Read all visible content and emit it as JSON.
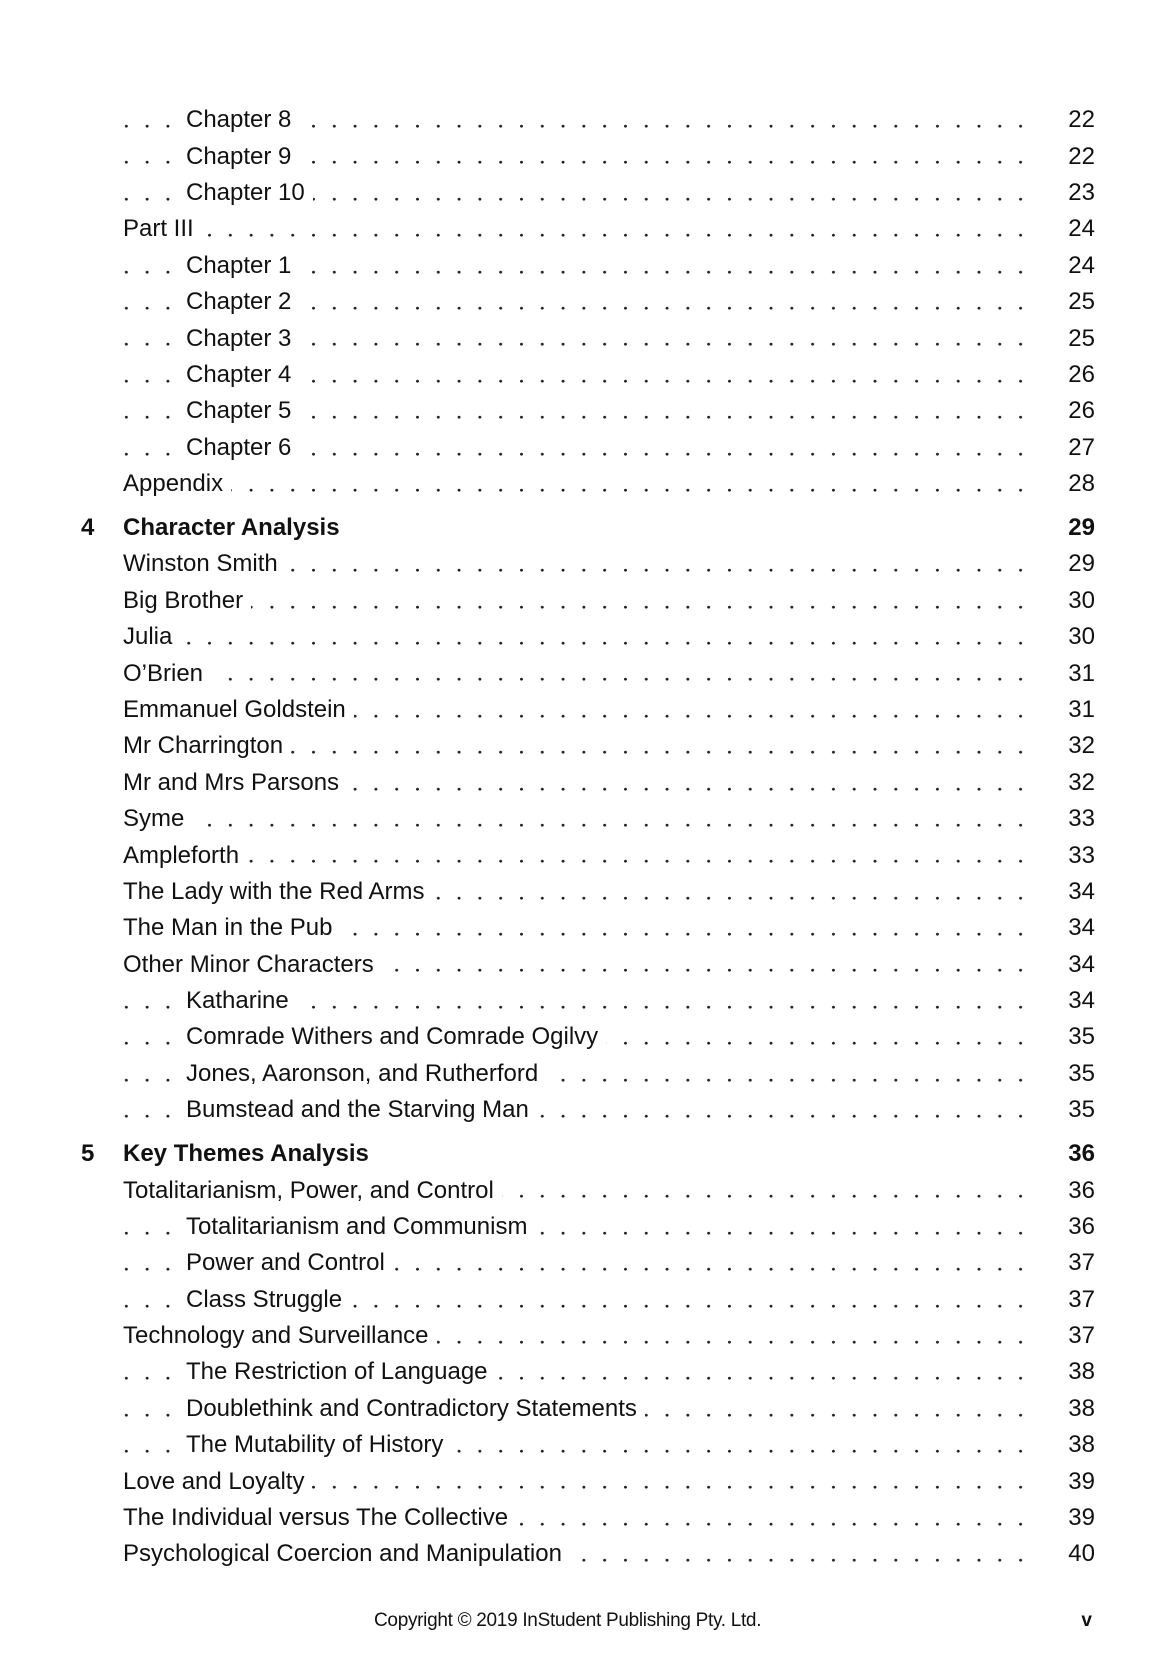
{
  "entries": [
    {
      "level": 2,
      "label": "Chapter 8",
      "page": "22"
    },
    {
      "level": 2,
      "label": "Chapter 9",
      "page": "22"
    },
    {
      "level": 2,
      "label": "Chapter 10",
      "page": "23"
    },
    {
      "level": 1,
      "label": "Part III",
      "page": "24"
    },
    {
      "level": 2,
      "label": "Chapter 1",
      "page": "24"
    },
    {
      "level": 2,
      "label": "Chapter 2",
      "page": "25"
    },
    {
      "level": 2,
      "label": "Chapter 3",
      "page": "25"
    },
    {
      "level": 2,
      "label": "Chapter 4",
      "page": "26"
    },
    {
      "level": 2,
      "label": "Chapter 5",
      "page": "26"
    },
    {
      "level": 2,
      "label": "Chapter 6",
      "page": "27"
    },
    {
      "level": 1,
      "label": "Appendix",
      "page": "28"
    },
    {
      "level": 0,
      "num": "4",
      "label": "Character Analysis",
      "page": "29"
    },
    {
      "level": 1,
      "label": "Winston Smith",
      "page": "29"
    },
    {
      "level": 1,
      "label": "Big Brother",
      "page": "30"
    },
    {
      "level": 1,
      "label": "Julia",
      "page": "30"
    },
    {
      "level": 1,
      "label": "O’Brien",
      "page": "31"
    },
    {
      "level": 1,
      "label": "Emmanuel Goldstein",
      "page": "31"
    },
    {
      "level": 1,
      "label": "Mr Charrington",
      "page": "32"
    },
    {
      "level": 1,
      "label": "Mr and Mrs Parsons",
      "page": "32"
    },
    {
      "level": 1,
      "label": "Syme",
      "page": "33"
    },
    {
      "level": 1,
      "label": "Ampleforth",
      "page": "33"
    },
    {
      "level": 1,
      "label": "The Lady with the Red Arms",
      "page": "34"
    },
    {
      "level": 1,
      "label": "The Man in the Pub",
      "page": "34"
    },
    {
      "level": 1,
      "label": "Other Minor Characters",
      "page": "34"
    },
    {
      "level": 2,
      "label": "Katharine",
      "page": "34"
    },
    {
      "level": 2,
      "label": "Comrade Withers and Comrade Ogilvy",
      "page": "35"
    },
    {
      "level": 2,
      "label": "Jones, Aaronson, and Rutherford",
      "page": "35"
    },
    {
      "level": 2,
      "label": "Bumstead and the Starving Man",
      "page": "35"
    },
    {
      "level": 0,
      "num": "5",
      "label": "Key Themes Analysis",
      "page": "36"
    },
    {
      "level": 1,
      "label": "Totalitarianism, Power, and Control",
      "page": "36"
    },
    {
      "level": 2,
      "label": "Totalitarianism and Communism",
      "page": "36"
    },
    {
      "level": 2,
      "label": "Power and Control",
      "page": "37"
    },
    {
      "level": 2,
      "label": "Class Struggle",
      "page": "37"
    },
    {
      "level": 1,
      "label": "Technology and Surveillance",
      "page": "37"
    },
    {
      "level": 2,
      "label": "The Restriction of Language",
      "page": "38"
    },
    {
      "level": 2,
      "label": "Doublethink and Contradictory Statements",
      "page": "38"
    },
    {
      "level": 2,
      "label": "The Mutability of History",
      "page": "38"
    },
    {
      "level": 1,
      "label": "Love and Loyalty",
      "page": "39"
    },
    {
      "level": 1,
      "label": "The Individual versus The Collective",
      "page": "39"
    },
    {
      "level": 1,
      "label": "Psychological Coercion and Manipulation",
      "page": "40"
    }
  ],
  "footer": {
    "copyright": "Copyright © 2019 InStudent Publishing Pty. Ltd.",
    "page_number": "v"
  }
}
